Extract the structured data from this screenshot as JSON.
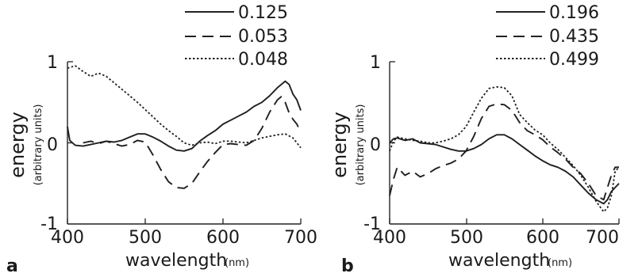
{
  "chart_data": [
    {
      "type": "line",
      "panel_label": "a",
      "xlabel": "wavelength",
      "xlabel_unit": "(nm)",
      "ylabel": "energy",
      "ylabel_sub": "(arbitrary units)",
      "xlim": [
        400,
        700
      ],
      "ylim": [
        -1,
        1
      ],
      "xticks": [
        "400",
        "500",
        "600",
        "700"
      ],
      "yticks": [
        "1",
        "0",
        "-1"
      ],
      "grid": false,
      "legend_position": "top-right",
      "series": [
        {
          "name": "0.125",
          "style": "solid",
          "points": [
            [
              400,
              0.2
            ],
            [
              403,
              0.03
            ],
            [
              410,
              -0.03
            ],
            [
              420,
              -0.04
            ],
            [
              430,
              -0.02
            ],
            [
              440,
              0.0
            ],
            [
              450,
              0.02
            ],
            [
              460,
              0.01
            ],
            [
              470,
              0.03
            ],
            [
              480,
              0.07
            ],
            [
              490,
              0.11
            ],
            [
              500,
              0.11
            ],
            [
              510,
              0.07
            ],
            [
              520,
              0.02
            ],
            [
              530,
              -0.04
            ],
            [
              540,
              -0.09
            ],
            [
              550,
              -0.1
            ],
            [
              560,
              -0.07
            ],
            [
              570,
              0.02
            ],
            [
              580,
              0.09
            ],
            [
              590,
              0.15
            ],
            [
              600,
              0.23
            ],
            [
              610,
              0.28
            ],
            [
              620,
              0.33
            ],
            [
              630,
              0.38
            ],
            [
              640,
              0.45
            ],
            [
              650,
              0.5
            ],
            [
              660,
              0.58
            ],
            [
              670,
              0.68
            ],
            [
              680,
              0.76
            ],
            [
              685,
              0.72
            ],
            [
              690,
              0.6
            ],
            [
              695,
              0.53
            ],
            [
              700,
              0.4
            ]
          ]
        },
        {
          "name": "0.053",
          "style": "dashed",
          "points": [
            [
              420,
              0.0
            ],
            [
              430,
              0.02
            ],
            [
              440,
              -0.01
            ],
            [
              450,
              0.02
            ],
            [
              460,
              -0.01
            ],
            [
              470,
              -0.04
            ],
            [
              480,
              -0.02
            ],
            [
              490,
              0.03
            ],
            [
              500,
              0.01
            ],
            [
              510,
              -0.15
            ],
            [
              520,
              -0.33
            ],
            [
              530,
              -0.48
            ],
            [
              540,
              -0.55
            ],
            [
              550,
              -0.56
            ],
            [
              560,
              -0.5
            ],
            [
              570,
              -0.36
            ],
            [
              580,
              -0.23
            ],
            [
              590,
              -0.12
            ],
            [
              600,
              -0.02
            ],
            [
              610,
              -0.01
            ],
            [
              620,
              -0.02
            ],
            [
              630,
              -0.03
            ],
            [
              640,
              0.03
            ],
            [
              650,
              0.18
            ],
            [
              660,
              0.38
            ],
            [
              670,
              0.53
            ],
            [
              675,
              0.57
            ],
            [
              680,
              0.5
            ],
            [
              685,
              0.37
            ],
            [
              690,
              0.29
            ],
            [
              695,
              0.23
            ],
            [
              700,
              0.13
            ]
          ]
        },
        {
          "name": "0.048",
          "style": "dotted",
          "points": [
            [
              400,
              0.92
            ],
            [
              410,
              0.95
            ],
            [
              420,
              0.88
            ],
            [
              430,
              0.82
            ],
            [
              440,
              0.86
            ],
            [
              450,
              0.82
            ],
            [
              460,
              0.74
            ],
            [
              470,
              0.66
            ],
            [
              480,
              0.58
            ],
            [
              490,
              0.5
            ],
            [
              500,
              0.41
            ],
            [
              510,
              0.32
            ],
            [
              520,
              0.23
            ],
            [
              530,
              0.15
            ],
            [
              540,
              0.08
            ],
            [
              550,
              0.0
            ],
            [
              560,
              -0.03
            ],
            [
              570,
              0.0
            ],
            [
              580,
              0.01
            ],
            [
              590,
              -0.01
            ],
            [
              600,
              0.02
            ],
            [
              610,
              0.02
            ],
            [
              620,
              0.01
            ],
            [
              630,
              0.0
            ],
            [
              640,
              0.03
            ],
            [
              650,
              0.06
            ],
            [
              660,
              0.08
            ],
            [
              670,
              0.1
            ],
            [
              680,
              0.11
            ],
            [
              690,
              0.06
            ],
            [
              700,
              -0.06
            ]
          ]
        }
      ]
    },
    {
      "type": "line",
      "panel_label": "b",
      "xlabel": "wavelength",
      "xlabel_unit": "(nm)",
      "ylabel": "energy",
      "ylabel_sub": "(arbitrary units)",
      "xlim": [
        400,
        700
      ],
      "ylim": [
        -1,
        1
      ],
      "xticks": [
        "400",
        "500",
        "600",
        "700"
      ],
      "yticks": [
        "1",
        "0",
        "-1"
      ],
      "grid": false,
      "legend_position": "top-right",
      "series": [
        {
          "name": "0.196",
          "style": "solid",
          "points": [
            [
              400,
              0.0
            ],
            [
              405,
              0.05
            ],
            [
              410,
              0.06
            ],
            [
              420,
              0.03
            ],
            [
              430,
              0.05
            ],
            [
              440,
              0.0
            ],
            [
              450,
              -0.01
            ],
            [
              460,
              -0.02
            ],
            [
              470,
              -0.05
            ],
            [
              480,
              -0.08
            ],
            [
              490,
              -0.1
            ],
            [
              500,
              -0.1
            ],
            [
              510,
              -0.07
            ],
            [
              520,
              -0.02
            ],
            [
              530,
              0.05
            ],
            [
              540,
              0.1
            ],
            [
              550,
              0.1
            ],
            [
              560,
              0.05
            ],
            [
              570,
              -0.02
            ],
            [
              580,
              -0.09
            ],
            [
              590,
              -0.16
            ],
            [
              600,
              -0.22
            ],
            [
              610,
              -0.27
            ],
            [
              620,
              -0.3
            ],
            [
              630,
              -0.35
            ],
            [
              640,
              -0.42
            ],
            [
              650,
              -0.52
            ],
            [
              660,
              -0.62
            ],
            [
              670,
              -0.7
            ],
            [
              680,
              -0.75
            ],
            [
              685,
              -0.7
            ],
            [
              690,
              -0.6
            ],
            [
              695,
              -0.55
            ],
            [
              700,
              -0.5
            ]
          ]
        },
        {
          "name": "0.435",
          "style": "dashed",
          "points": [
            [
              400,
              -0.65
            ],
            [
              405,
              -0.45
            ],
            [
              410,
              -0.3
            ],
            [
              420,
              -0.4
            ],
            [
              430,
              -0.35
            ],
            [
              440,
              -0.42
            ],
            [
              450,
              -0.38
            ],
            [
              460,
              -0.32
            ],
            [
              470,
              -0.28
            ],
            [
              480,
              -0.25
            ],
            [
              490,
              -0.2
            ],
            [
              500,
              -0.1
            ],
            [
              510,
              0.08
            ],
            [
              520,
              0.3
            ],
            [
              530,
              0.45
            ],
            [
              540,
              0.48
            ],
            [
              550,
              0.47
            ],
            [
              560,
              0.4
            ],
            [
              570,
              0.25
            ],
            [
              580,
              0.15
            ],
            [
              590,
              0.1
            ],
            [
              600,
              0.04
            ],
            [
              610,
              -0.05
            ],
            [
              620,
              -0.12
            ],
            [
              630,
              -0.2
            ],
            [
              640,
              -0.3
            ],
            [
              650,
              -0.38
            ],
            [
              660,
              -0.5
            ],
            [
              670,
              -0.65
            ],
            [
              680,
              -0.7
            ],
            [
              685,
              -0.55
            ],
            [
              690,
              -0.4
            ],
            [
              695,
              -0.3
            ],
            [
              700,
              -0.3
            ]
          ]
        },
        {
          "name": "0.499",
          "style": "dotted",
          "points": [
            [
              400,
              -0.1
            ],
            [
              405,
              0.02
            ],
            [
              410,
              0.07
            ],
            [
              420,
              0.05
            ],
            [
              430,
              0.03
            ],
            [
              440,
              0.02
            ],
            [
              450,
              0.0
            ],
            [
              460,
              0.0
            ],
            [
              470,
              0.02
            ],
            [
              480,
              0.05
            ],
            [
              490,
              0.1
            ],
            [
              500,
              0.2
            ],
            [
              510,
              0.38
            ],
            [
              520,
              0.55
            ],
            [
              530,
              0.67
            ],
            [
              540,
              0.69
            ],
            [
              550,
              0.68
            ],
            [
              560,
              0.58
            ],
            [
              570,
              0.35
            ],
            [
              580,
              0.25
            ],
            [
              590,
              0.16
            ],
            [
              600,
              0.1
            ],
            [
              610,
              0.0
            ],
            [
              620,
              -0.08
            ],
            [
              630,
              -0.18
            ],
            [
              640,
              -0.28
            ],
            [
              650,
              -0.4
            ],
            [
              660,
              -0.55
            ],
            [
              670,
              -0.72
            ],
            [
              680,
              -0.85
            ],
            [
              685,
              -0.8
            ],
            [
              690,
              -0.65
            ],
            [
              695,
              -0.35
            ],
            [
              700,
              -0.3
            ]
          ]
        }
      ]
    }
  ]
}
